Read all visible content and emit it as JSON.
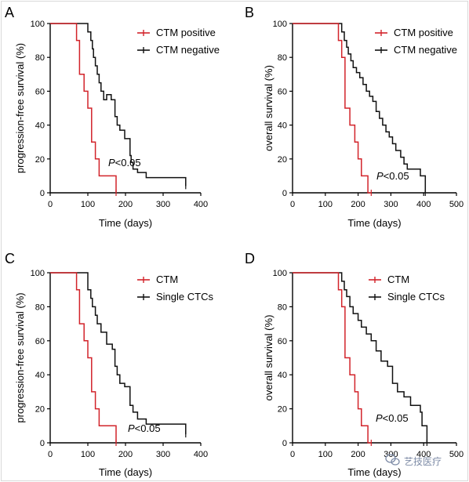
{
  "colors": {
    "positive": "#d2232a",
    "negative": "#111111",
    "axis": "#000000",
    "frame": "#d9d9d9",
    "watermark": "#7d8ba6"
  },
  "watermark": {
    "text": "艺技医疗",
    "icon": "wechat-icon"
  },
  "chart_data": [
    {
      "type": "line",
      "panel_label": "A",
      "xlabel": "Time (days)",
      "ylabel": "progression-free survival (%)",
      "xlim": [
        0,
        400
      ],
      "ylim": [
        0,
        100
      ],
      "xticks": [
        0,
        100,
        200,
        300,
        400
      ],
      "yticks": [
        0,
        20,
        40,
        60,
        80,
        100
      ],
      "legend_position": "top-right",
      "annotation": {
        "prefix": "P",
        "text": "<0.05"
      },
      "series": [
        {
          "name": "CTM positive",
          "color": "#d2232a",
          "x": [
            0,
            70,
            70,
            78,
            78,
            90,
            90,
            100,
            100,
            110,
            110,
            120,
            120,
            130,
            130,
            175,
            175
          ],
          "y": [
            100,
            100,
            90,
            90,
            70,
            70,
            60,
            60,
            50,
            50,
            30,
            30,
            20,
            20,
            10,
            10,
            0
          ]
        },
        {
          "name": "CTM negative",
          "color": "#111111",
          "x": [
            0,
            100,
            100,
            108,
            108,
            112,
            112,
            115,
            115,
            120,
            120,
            125,
            125,
            130,
            130,
            135,
            135,
            142,
            142,
            150,
            150,
            162,
            162,
            172,
            172,
            178,
            178,
            185,
            185,
            198,
            198,
            212,
            212,
            215,
            215,
            220,
            220,
            232,
            232,
            255,
            255,
            360,
            360
          ],
          "y": [
            100,
            100,
            95,
            95,
            90,
            90,
            85,
            85,
            80,
            80,
            75,
            75,
            70,
            70,
            65,
            65,
            60,
            60,
            55,
            55,
            58,
            58,
            55,
            55,
            45,
            45,
            40,
            40,
            37,
            37,
            32,
            32,
            22,
            22,
            18,
            18,
            14,
            14,
            12,
            12,
            9,
            9,
            4
          ]
        }
      ]
    },
    {
      "type": "line",
      "panel_label": "B",
      "xlabel": "Time (days)",
      "ylabel": "overall survival (%)",
      "xlim": [
        0,
        500
      ],
      "ylim": [
        0,
        100
      ],
      "xticks": [
        0,
        100,
        200,
        300,
        400,
        500
      ],
      "yticks": [
        0,
        20,
        40,
        60,
        80,
        100
      ],
      "legend_position": "top-right",
      "annotation": {
        "prefix": "P",
        "text": "<0.05"
      },
      "series": [
        {
          "name": "CTM positive",
          "color": "#d2232a",
          "x": [
            0,
            140,
            140,
            150,
            150,
            160,
            160,
            175,
            175,
            190,
            190,
            200,
            200,
            210,
            210,
            230,
            230,
            240,
            240
          ],
          "y": [
            100,
            100,
            90,
            90,
            80,
            80,
            50,
            50,
            40,
            40,
            30,
            30,
            20,
            20,
            10,
            10,
            0,
            0,
            0
          ]
        },
        {
          "name": "CTM negative",
          "color": "#111111",
          "x": [
            0,
            150,
            150,
            158,
            158,
            165,
            165,
            170,
            170,
            178,
            178,
            185,
            185,
            195,
            195,
            205,
            205,
            215,
            215,
            225,
            225,
            235,
            235,
            245,
            245,
            255,
            255,
            265,
            265,
            275,
            275,
            285,
            285,
            295,
            295,
            305,
            305,
            315,
            315,
            330,
            330,
            340,
            340,
            350,
            350,
            375,
            375,
            390,
            390,
            405,
            405
          ],
          "y": [
            100,
            100,
            95,
            95,
            90,
            90,
            86,
            86,
            82,
            82,
            78,
            78,
            74,
            74,
            71,
            71,
            68,
            68,
            64,
            64,
            60,
            60,
            57,
            57,
            54,
            54,
            48,
            48,
            44,
            44,
            40,
            40,
            36,
            36,
            33,
            33,
            29,
            29,
            25,
            25,
            21,
            21,
            17,
            17,
            14,
            14,
            14,
            14,
            10,
            10,
            0
          ]
        }
      ]
    },
    {
      "type": "line",
      "panel_label": "C",
      "xlabel": "Time (days)",
      "ylabel": "progression-free survival (%)",
      "xlim": [
        0,
        400
      ],
      "ylim": [
        0,
        100
      ],
      "xticks": [
        0,
        100,
        200,
        300,
        400
      ],
      "yticks": [
        0,
        20,
        40,
        60,
        80,
        100
      ],
      "legend_position": "top-right",
      "annotation": {
        "prefix": "P",
        "text": "<0.05"
      },
      "series": [
        {
          "name": "CTM",
          "color": "#d2232a",
          "x": [
            0,
            70,
            70,
            78,
            78,
            90,
            90,
            100,
            100,
            110,
            110,
            120,
            120,
            130,
            130,
            175,
            175
          ],
          "y": [
            100,
            100,
            90,
            90,
            70,
            70,
            60,
            60,
            50,
            50,
            30,
            30,
            20,
            20,
            10,
            10,
            0
          ]
        },
        {
          "name": "Single CTCs",
          "color": "#111111",
          "x": [
            0,
            100,
            100,
            108,
            108,
            112,
            112,
            120,
            120,
            125,
            125,
            135,
            135,
            150,
            150,
            165,
            165,
            172,
            172,
            178,
            178,
            185,
            185,
            198,
            198,
            212,
            212,
            220,
            220,
            232,
            232,
            255,
            255,
            360,
            360
          ],
          "y": [
            100,
            100,
            90,
            90,
            85,
            85,
            80,
            80,
            75,
            75,
            70,
            70,
            65,
            65,
            58,
            58,
            55,
            55,
            45,
            45,
            40,
            40,
            35,
            35,
            33,
            33,
            22,
            22,
            18,
            18,
            14,
            14,
            11,
            11,
            5
          ]
        }
      ]
    },
    {
      "type": "line",
      "panel_label": "D",
      "xlabel": "Time (days)",
      "ylabel": "overall survival (%)",
      "xlim": [
        0,
        500
      ],
      "ylim": [
        0,
        100
      ],
      "xticks": [
        0,
        100,
        200,
        300,
        400,
        500
      ],
      "yticks": [
        0,
        20,
        40,
        60,
        80,
        100
      ],
      "legend_position": "top-right",
      "annotation": {
        "prefix": "P",
        "text": "<0.05"
      },
      "series": [
        {
          "name": "CTM",
          "color": "#d2232a",
          "x": [
            0,
            140,
            140,
            150,
            150,
            160,
            160,
            175,
            175,
            190,
            190,
            200,
            200,
            210,
            210,
            230,
            230,
            240
          ],
          "y": [
            100,
            100,
            90,
            90,
            80,
            80,
            50,
            50,
            40,
            40,
            30,
            30,
            20,
            20,
            10,
            10,
            0,
            0
          ]
        },
        {
          "name": "Single CTCs",
          "color": "#111111",
          "x": [
            0,
            150,
            150,
            158,
            158,
            165,
            165,
            175,
            175,
            185,
            185,
            200,
            200,
            210,
            210,
            225,
            225,
            240,
            240,
            255,
            255,
            270,
            270,
            290,
            290,
            305,
            305,
            320,
            320,
            340,
            340,
            360,
            360,
            380,
            380,
            390,
            390,
            395,
            395,
            410,
            410
          ],
          "y": [
            100,
            100,
            95,
            95,
            90,
            90,
            86,
            86,
            80,
            80,
            76,
            76,
            72,
            72,
            68,
            68,
            64,
            64,
            60,
            60,
            54,
            54,
            48,
            48,
            45,
            45,
            35,
            35,
            30,
            30,
            27,
            27,
            22,
            22,
            22,
            22,
            18,
            18,
            10,
            10,
            0
          ]
        }
      ]
    }
  ]
}
